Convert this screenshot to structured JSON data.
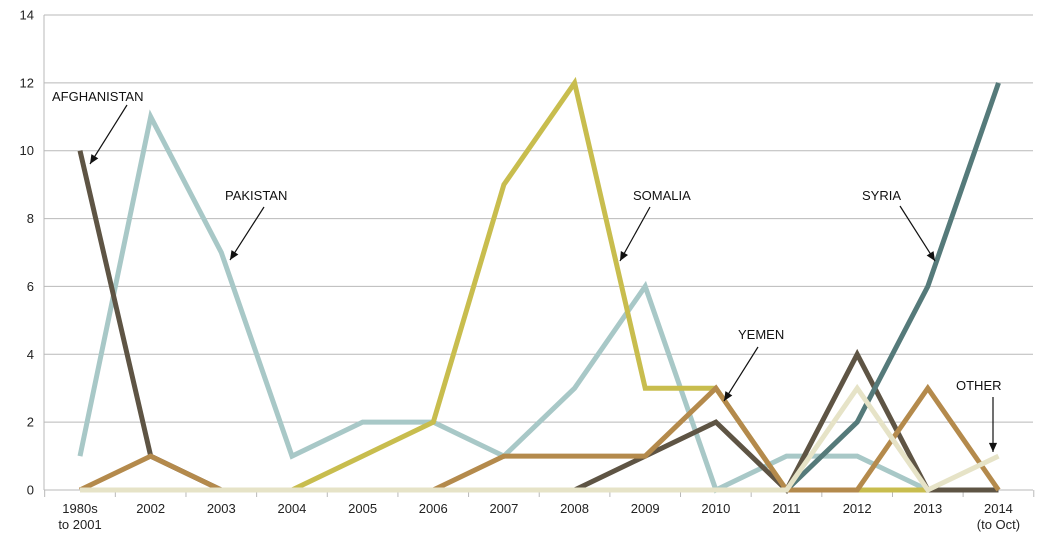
{
  "chart_data": {
    "type": "line",
    "title": "",
    "xlabel": "",
    "ylabel": "",
    "ylim": [
      0,
      14
    ],
    "yticks": [
      0,
      2,
      4,
      6,
      8,
      10,
      12,
      14
    ],
    "grid": true,
    "legend": "none",
    "categories": [
      [
        "1980s",
        "to 2001"
      ],
      [
        "2002"
      ],
      [
        "2003"
      ],
      [
        "2004"
      ],
      [
        "2005"
      ],
      [
        "2006"
      ],
      [
        "2007"
      ],
      [
        "2008"
      ],
      [
        "2009"
      ],
      [
        "2010"
      ],
      [
        "2011"
      ],
      [
        "2012"
      ],
      [
        "2013"
      ],
      [
        "2014",
        "(to Oct)"
      ]
    ],
    "series": [
      {
        "name": "PAKISTAN",
        "color": "#a8c8c7",
        "values": [
          1,
          11,
          7,
          1,
          2,
          2,
          1,
          3,
          6,
          0,
          1,
          1,
          0,
          0
        ]
      },
      {
        "name": "SOMALIA",
        "color": "#c8bd4e",
        "values": [
          0,
          0,
          0,
          0,
          1,
          2,
          9,
          12,
          3,
          3,
          0,
          0,
          0,
          0
        ]
      },
      {
        "name": "AFGHANISTAN",
        "color": "#5e5444",
        "values": [
          10,
          1,
          0,
          0,
          0,
          0,
          0,
          0,
          1,
          2,
          0,
          4,
          0,
          0
        ]
      },
      {
        "name": "SYRIA",
        "color": "#557a7a",
        "values": [
          0,
          0,
          0,
          0,
          0,
          0,
          0,
          0,
          0,
          0,
          0,
          2,
          6,
          12
        ]
      },
      {
        "name": "YEMEN",
        "color": "#b48a4c",
        "values": [
          0,
          1,
          0,
          0,
          0,
          0,
          1,
          1,
          1,
          3,
          0,
          0,
          3,
          0
        ]
      },
      {
        "name": "OTHER",
        "color": "#e6e3c7",
        "values": [
          0,
          0,
          0,
          0,
          0,
          0,
          0,
          0,
          0,
          0,
          0,
          3,
          0,
          1
        ]
      }
    ],
    "annotations": [
      {
        "series": "AFGHANISTAN",
        "text": "AFGHANISTAN"
      },
      {
        "series": "PAKISTAN",
        "text": "PAKISTAN"
      },
      {
        "series": "SOMALIA",
        "text": "SOMALIA"
      },
      {
        "series": "SYRIA",
        "text": "SYRIA"
      },
      {
        "series": "YEMEN",
        "text": "YEMEN"
      },
      {
        "series": "OTHER",
        "text": "OTHER"
      }
    ]
  }
}
